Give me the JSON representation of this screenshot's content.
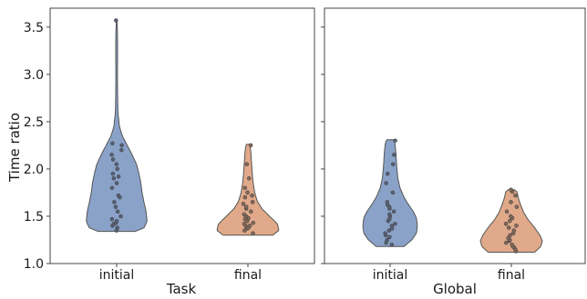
{
  "chart_data": {
    "type": "violin",
    "ylabel": "Time ratio",
    "ylim": [
      1.0,
      3.7
    ],
    "yticks": [
      "1.0",
      "1.5",
      "2.0",
      "2.5",
      "3.0",
      "3.5"
    ],
    "colors": {
      "initial": "#8aa2c8",
      "final": "#e0a98a"
    },
    "panels": [
      {
        "xlabel": "Task",
        "categories": [
          "initial",
          "final"
        ],
        "series": [
          {
            "category": "initial",
            "min": 1.34,
            "max": 3.57,
            "density": [
              [
                1.34,
                0.6
              ],
              [
                1.38,
                0.9
              ],
              [
                1.45,
                0.98
              ],
              [
                1.55,
                0.95
              ],
              [
                1.65,
                0.88
              ],
              [
                1.75,
                0.82
              ],
              [
                1.85,
                0.78
              ],
              [
                1.95,
                0.72
              ],
              [
                2.05,
                0.64
              ],
              [
                2.15,
                0.5
              ],
              [
                2.25,
                0.34
              ],
              [
                2.35,
                0.18
              ],
              [
                2.45,
                0.09
              ],
              [
                2.6,
                0.04
              ],
              [
                2.8,
                0.03
              ],
              [
                3.0,
                0.025
              ],
              [
                3.2,
                0.03
              ],
              [
                3.35,
                0.03
              ],
              [
                3.5,
                0.02
              ],
              [
                3.57,
                0.01
              ]
            ],
            "points": [
              1.35,
              1.38,
              1.4,
              1.42,
              1.43,
              1.45,
              1.47,
              1.5,
              1.55,
              1.6,
              1.65,
              1.7,
              1.72,
              1.8,
              1.85,
              1.9,
              1.92,
              1.95,
              2.0,
              2.05,
              2.1,
              2.15,
              2.2,
              2.25,
              2.27,
              3.57
            ]
          },
          {
            "category": "final",
            "min": 1.3,
            "max": 2.26,
            "density": [
              [
                1.3,
                0.8
              ],
              [
                1.35,
                1.0
              ],
              [
                1.42,
                0.95
              ],
              [
                1.5,
                0.7
              ],
              [
                1.58,
                0.45
              ],
              [
                1.66,
                0.3
              ],
              [
                1.75,
                0.22
              ],
              [
                1.85,
                0.17
              ],
              [
                1.95,
                0.14
              ],
              [
                2.05,
                0.12
              ],
              [
                2.15,
                0.1
              ],
              [
                2.22,
                0.08
              ],
              [
                2.26,
                0.05
              ]
            ],
            "points": [
              1.32,
              1.35,
              1.37,
              1.38,
              1.4,
              1.4,
              1.42,
              1.43,
              1.45,
              1.47,
              1.48,
              1.5,
              1.52,
              1.55,
              1.58,
              1.6,
              1.63,
              1.65,
              1.7,
              1.72,
              1.75,
              1.8,
              1.9,
              2.05,
              2.25
            ]
          }
        ]
      },
      {
        "xlabel": "Global",
        "categories": [
          "initial",
          "final"
        ],
        "series": [
          {
            "category": "initial",
            "min": 1.18,
            "max": 2.31,
            "density": [
              [
                1.18,
                0.45
              ],
              [
                1.25,
                0.7
              ],
              [
                1.32,
                0.85
              ],
              [
                1.4,
                0.88
              ],
              [
                1.48,
                0.85
              ],
              [
                1.55,
                0.75
              ],
              [
                1.62,
                0.6
              ],
              [
                1.7,
                0.45
              ],
              [
                1.8,
                0.32
              ],
              [
                1.9,
                0.25
              ],
              [
                2.0,
                0.22
              ],
              [
                2.1,
                0.2
              ],
              [
                2.2,
                0.18
              ],
              [
                2.28,
                0.15
              ],
              [
                2.31,
                0.1
              ]
            ],
            "points": [
              1.2,
              1.22,
              1.25,
              1.28,
              1.3,
              1.32,
              1.35,
              1.37,
              1.4,
              1.42,
              1.45,
              1.47,
              1.5,
              1.52,
              1.55,
              1.58,
              1.6,
              1.62,
              1.65,
              1.75,
              1.85,
              1.95,
              2.05,
              2.15,
              2.3
            ]
          },
          {
            "category": "final",
            "min": 1.12,
            "max": 1.78,
            "density": [
              [
                1.12,
                0.75
              ],
              [
                1.18,
                0.95
              ],
              [
                1.24,
                1.0
              ],
              [
                1.3,
                0.92
              ],
              [
                1.38,
                0.75
              ],
              [
                1.46,
                0.55
              ],
              [
                1.54,
                0.4
              ],
              [
                1.62,
                0.3
              ],
              [
                1.7,
                0.22
              ],
              [
                1.76,
                0.18
              ],
              [
                1.78,
                0.1
              ]
            ],
            "points": [
              1.13,
              1.15,
              1.17,
              1.18,
              1.2,
              1.22,
              1.24,
              1.25,
              1.27,
              1.3,
              1.32,
              1.35,
              1.38,
              1.4,
              1.42,
              1.45,
              1.48,
              1.5,
              1.55,
              1.6,
              1.65,
              1.72,
              1.76,
              1.78
            ]
          }
        ]
      }
    ]
  }
}
